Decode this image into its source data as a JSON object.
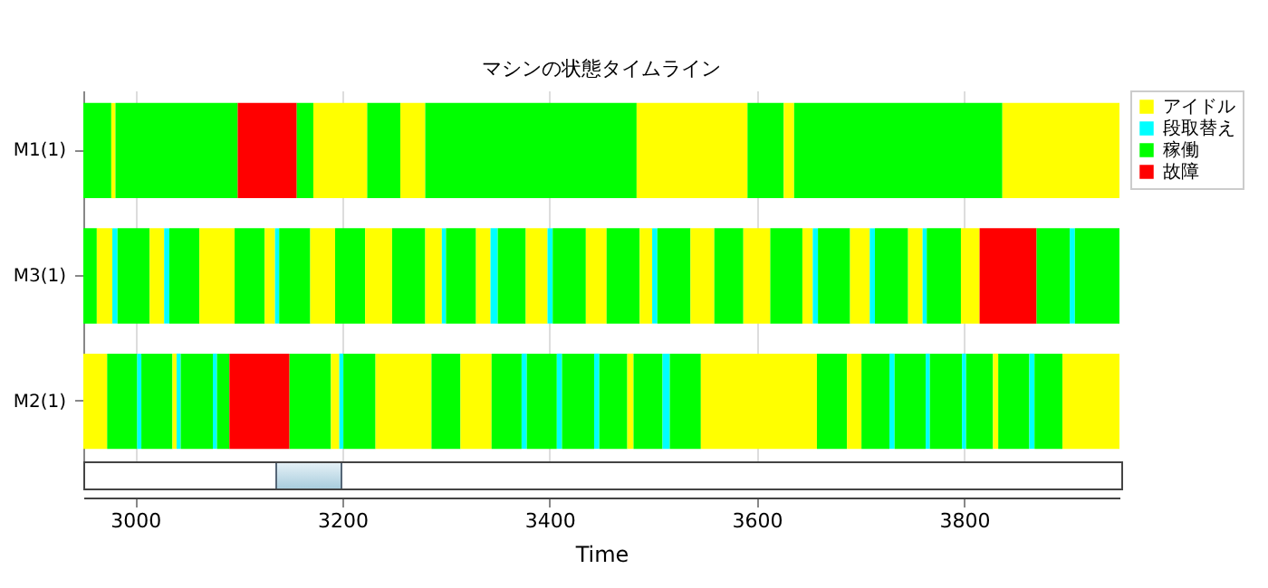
{
  "chart_data": {
    "type": "bar",
    "orientation": "horizontal",
    "title": "マシンの状態タイムライン",
    "xlabel": "Time",
    "categories": [
      "M1(1)",
      "M3(1)",
      "M2(1)"
    ],
    "xlim": [
      2950,
      3950
    ],
    "xticks": [
      3000,
      3200,
      3400,
      3600,
      3800
    ],
    "grid": "x",
    "legend": "right",
    "series": [
      {
        "color": "#00ff00",
        "base": [
          2950,
          null,
          null
        ],
        "values": [
          27,
          null,
          null
        ]
      },
      {
        "name": "アイドル",
        "color": "#ffff00",
        "base": [
          2977,
          null,
          null
        ],
        "values": [
          4,
          null,
          null
        ]
      },
      {
        "color": "#00ff00",
        "base": [
          2981,
          null,
          null
        ],
        "values": [
          118,
          null,
          null
        ]
      },
      {
        "color": "#ff0000",
        "base": [
          3099,
          null,
          null
        ],
        "values": [
          57,
          null,
          null
        ]
      },
      {
        "color": "#00ff00",
        "base": [
          3156,
          null,
          null
        ],
        "values": [
          16,
          null,
          null
        ]
      },
      {
        "color": "#ffff00",
        "base": [
          3172,
          null,
          null
        ],
        "values": [
          52,
          null,
          null
        ]
      },
      {
        "color": "#00ff00",
        "base": [
          3224,
          null,
          null
        ],
        "values": [
          32,
          null,
          null
        ]
      },
      {
        "color": "#ffff00",
        "base": [
          3256,
          null,
          null
        ],
        "values": [
          24,
          null,
          null
        ]
      },
      {
        "color": "#00ff00",
        "base": [
          3280,
          null,
          null
        ],
        "values": [
          204,
          null,
          null
        ]
      },
      {
        "color": "#ffff00",
        "base": [
          3484,
          null,
          null
        ],
        "values": [
          107,
          null,
          null
        ]
      },
      {
        "color": "#00ff00",
        "base": [
          3591,
          null,
          null
        ],
        "values": [
          35,
          null,
          null
        ]
      },
      {
        "color": "#ffff00",
        "base": [
          3626,
          null,
          null
        ],
        "values": [
          10,
          null,
          null
        ]
      },
      {
        "color": "#00ff00",
        "base": [
          3636,
          null,
          null
        ],
        "values": [
          201,
          null,
          null
        ]
      },
      {
        "color": "#ffff00",
        "base": [
          3837,
          null,
          null
        ],
        "values": [
          113,
          null,
          null
        ]
      },
      {
        "color": "#00ff00",
        "base": [
          null,
          2950,
          null
        ],
        "values": [
          null,
          13,
          null
        ]
      },
      {
        "color": "#ffff00",
        "base": [
          null,
          2963,
          null
        ],
        "values": [
          null,
          15,
          null
        ]
      },
      {
        "name": "段取替え",
        "color": "#00ffff",
        "base": [
          null,
          2978,
          null
        ],
        "values": [
          null,
          5,
          null
        ]
      },
      {
        "name": "稼働",
        "color": "#00ff00",
        "base": [
          null,
          2983,
          null
        ],
        "values": [
          null,
          31,
          null
        ]
      },
      {
        "color": "#ffff00",
        "base": [
          null,
          3014,
          null
        ],
        "values": [
          null,
          14,
          null
        ]
      },
      {
        "color": "#00ffff",
        "base": [
          null,
          3028,
          null
        ],
        "values": [
          null,
          5,
          null
        ]
      },
      {
        "color": "#00ff00",
        "base": [
          null,
          3033,
          null
        ],
        "values": [
          null,
          29,
          null
        ]
      },
      {
        "color": "#ffff00",
        "base": [
          null,
          3062,
          null
        ],
        "values": [
          null,
          34,
          null
        ]
      },
      {
        "color": "#00ff00",
        "base": [
          null,
          3096,
          null
        ],
        "values": [
          null,
          29,
          null
        ]
      },
      {
        "color": "#ffff00",
        "base": [
          null,
          3125,
          null
        ],
        "values": [
          null,
          10,
          null
        ]
      },
      {
        "color": "#00ffff",
        "base": [
          null,
          3135,
          null
        ],
        "values": [
          null,
          4,
          null
        ]
      },
      {
        "color": "#00ff00",
        "base": [
          null,
          3139,
          null
        ],
        "values": [
          null,
          30,
          null
        ]
      },
      {
        "color": "#ffff00",
        "base": [
          null,
          3169,
          null
        ],
        "values": [
          null,
          24,
          null
        ]
      },
      {
        "color": "#00ff00",
        "base": [
          null,
          3193,
          null
        ],
        "values": [
          null,
          29,
          null
        ]
      },
      {
        "color": "#ffff00",
        "base": [
          null,
          3222,
          null
        ],
        "values": [
          null,
          26,
          null
        ]
      },
      {
        "color": "#00ff00",
        "base": [
          null,
          3248,
          null
        ],
        "values": [
          null,
          32,
          null
        ]
      },
      {
        "color": "#ffff00",
        "base": [
          null,
          3280,
          null
        ],
        "values": [
          null,
          16,
          null
        ]
      },
      {
        "color": "#00ffff",
        "base": [
          null,
          3296,
          null
        ],
        "values": [
          null,
          4,
          null
        ]
      },
      {
        "color": "#00ff00",
        "base": [
          null,
          3300,
          null
        ],
        "values": [
          null,
          29,
          null
        ]
      },
      {
        "color": "#ffff00",
        "base": [
          null,
          3329,
          null
        ],
        "values": [
          null,
          14,
          null
        ]
      },
      {
        "color": "#00ffff",
        "base": [
          null,
          3343,
          null
        ],
        "values": [
          null,
          7,
          null
        ]
      },
      {
        "color": "#00ff00",
        "base": [
          null,
          3350,
          null
        ],
        "values": [
          null,
          27,
          null
        ]
      },
      {
        "color": "#ffff00",
        "base": [
          null,
          3377,
          null
        ],
        "values": [
          null,
          21,
          null
        ]
      },
      {
        "color": "#00ffff",
        "base": [
          null,
          3398,
          null
        ],
        "values": [
          null,
          5,
          null
        ]
      },
      {
        "color": "#00ff00",
        "base": [
          null,
          3403,
          null
        ],
        "values": [
          null,
          32,
          null
        ]
      },
      {
        "color": "#ffff00",
        "base": [
          null,
          3435,
          null
        ],
        "values": [
          null,
          20,
          null
        ]
      },
      {
        "color": "#00ff00",
        "base": [
          null,
          3455,
          null
        ],
        "values": [
          null,
          32,
          null
        ]
      },
      {
        "color": "#ffff00",
        "base": [
          null,
          3487,
          null
        ],
        "values": [
          null,
          12,
          null
        ]
      },
      {
        "color": "#00ffff",
        "base": [
          null,
          3499,
          null
        ],
        "values": [
          null,
          5,
          null
        ]
      },
      {
        "color": "#00ff00",
        "base": [
          null,
          3504,
          null
        ],
        "values": [
          null,
          32,
          null
        ]
      },
      {
        "color": "#ffff00",
        "base": [
          null,
          3536,
          null
        ],
        "values": [
          null,
          23,
          null
        ]
      },
      {
        "color": "#00ff00",
        "base": [
          null,
          3559,
          null
        ],
        "values": [
          null,
          28,
          null
        ]
      },
      {
        "color": "#ffff00",
        "base": [
          null,
          3587,
          null
        ],
        "values": [
          null,
          26,
          null
        ]
      },
      {
        "color": "#00ff00",
        "base": [
          null,
          3613,
          null
        ],
        "values": [
          null,
          31,
          null
        ]
      },
      {
        "color": "#ffff00",
        "base": [
          null,
          3644,
          null
        ],
        "values": [
          null,
          10,
          null
        ]
      },
      {
        "color": "#00ffff",
        "base": [
          null,
          3654,
          null
        ],
        "values": [
          null,
          5,
          null
        ]
      },
      {
        "color": "#00ff00",
        "base": [
          null,
          3659,
          null
        ],
        "values": [
          null,
          31,
          null
        ]
      },
      {
        "color": "#ffff00",
        "base": [
          null,
          3690,
          null
        ],
        "values": [
          null,
          19,
          null
        ]
      },
      {
        "color": "#00ffff",
        "base": [
          null,
          3709,
          null
        ],
        "values": [
          null,
          5,
          null
        ]
      },
      {
        "color": "#00ff00",
        "base": [
          null,
          3714,
          null
        ],
        "values": [
          null,
          32,
          null
        ]
      },
      {
        "color": "#ffff00",
        "base": [
          null,
          3746,
          null
        ],
        "values": [
          null,
          14,
          null
        ]
      },
      {
        "color": "#00ffff",
        "base": [
          null,
          3760,
          null
        ],
        "values": [
          null,
          4,
          null
        ]
      },
      {
        "color": "#00ff00",
        "base": [
          null,
          3764,
          null
        ],
        "values": [
          null,
          33,
          null
        ]
      },
      {
        "color": "#ffff00",
        "base": [
          null,
          3797,
          null
        ],
        "values": [
          null,
          18,
          null
        ]
      },
      {
        "name": "故障",
        "color": "#ff0000",
        "base": [
          null,
          3815,
          null
        ],
        "values": [
          null,
          55,
          null
        ]
      },
      {
        "color": "#00ff00",
        "base": [
          null,
          3870,
          null
        ],
        "values": [
          null,
          32,
          null
        ]
      },
      {
        "color": "#00ffff",
        "base": [
          null,
          3902,
          null
        ],
        "values": [
          null,
          5,
          null
        ]
      },
      {
        "color": "#00ff00",
        "base": [
          null,
          3907,
          null
        ],
        "values": [
          null,
          43,
          null
        ]
      },
      {
        "color": "#ffff00",
        "base": [
          null,
          null,
          2950
        ],
        "values": [
          null,
          null,
          23
        ]
      },
      {
        "color": "#00ff00",
        "base": [
          null,
          null,
          2973
        ],
        "values": [
          null,
          null,
          29
        ]
      },
      {
        "color": "#00ffff",
        "base": [
          null,
          null,
          3002
        ],
        "values": [
          null,
          null,
          4
        ]
      },
      {
        "color": "#00ff00",
        "base": [
          null,
          null,
          3006
        ],
        "values": [
          null,
          null,
          30
        ]
      },
      {
        "color": "#ffff00",
        "base": [
          null,
          null,
          3036
        ],
        "values": [
          null,
          null,
          4
        ]
      },
      {
        "color": "#00ffff",
        "base": [
          null,
          null,
          3040
        ],
        "values": [
          null,
          null,
          4
        ]
      },
      {
        "color": "#00ff00",
        "base": [
          null,
          null,
          3044
        ],
        "values": [
          null,
          null,
          31
        ]
      },
      {
        "color": "#00ffff",
        "base": [
          null,
          null,
          3075
        ],
        "values": [
          null,
          null,
          4
        ]
      },
      {
        "color": "#00ff00",
        "base": [
          null,
          null,
          3079
        ],
        "values": [
          null,
          null,
          12
        ]
      },
      {
        "color": "#ff0000",
        "base": [
          null,
          null,
          3091
        ],
        "values": [
          null,
          null,
          58
        ]
      },
      {
        "color": "#00ff00",
        "base": [
          null,
          null,
          3149
        ],
        "values": [
          null,
          null,
          40
        ]
      },
      {
        "color": "#ffff00",
        "base": [
          null,
          null,
          3189
        ],
        "values": [
          null,
          null,
          8
        ]
      },
      {
        "color": "#00ffff",
        "base": [
          null,
          null,
          3197
        ],
        "values": [
          null,
          null,
          4
        ]
      },
      {
        "color": "#00ff00",
        "base": [
          null,
          null,
          3201
        ],
        "values": [
          null,
          null,
          31
        ]
      },
      {
        "color": "#ffff00",
        "base": [
          null,
          null,
          3232
        ],
        "values": [
          null,
          null,
          54
        ]
      },
      {
        "color": "#00ff00",
        "base": [
          null,
          null,
          3286
        ],
        "values": [
          null,
          null,
          28
        ]
      },
      {
        "color": "#ffff00",
        "base": [
          null,
          null,
          3314
        ],
        "values": [
          null,
          null,
          30
        ]
      },
      {
        "color": "#00ff00",
        "base": [
          null,
          null,
          3344
        ],
        "values": [
          null,
          null,
          29
        ]
      },
      {
        "color": "#00ffff",
        "base": [
          null,
          null,
          3373
        ],
        "values": [
          null,
          null,
          5
        ]
      },
      {
        "color": "#00ff00",
        "base": [
          null,
          null,
          3378
        ],
        "values": [
          null,
          null,
          29
        ]
      },
      {
        "color": "#00ffff",
        "base": [
          null,
          null,
          3407
        ],
        "values": [
          null,
          null,
          5
        ]
      },
      {
        "color": "#00ff00",
        "base": [
          null,
          null,
          3412
        ],
        "values": [
          null,
          null,
          31
        ]
      },
      {
        "color": "#00ffff",
        "base": [
          null,
          null,
          3443
        ],
        "values": [
          null,
          null,
          5
        ]
      },
      {
        "color": "#00ff00",
        "base": [
          null,
          null,
          3448
        ],
        "values": [
          null,
          null,
          27
        ]
      },
      {
        "color": "#ffff00",
        "base": [
          null,
          null,
          3475
        ],
        "values": [
          null,
          null,
          6
        ]
      },
      {
        "color": "#00ff00",
        "base": [
          null,
          null,
          3481
        ],
        "values": [
          null,
          null,
          28
        ]
      },
      {
        "color": "#00ffff",
        "base": [
          null,
          null,
          3509
        ],
        "values": [
          null,
          null,
          7
        ]
      },
      {
        "color": "#00ff00",
        "base": [
          null,
          null,
          3516
        ],
        "values": [
          null,
          null,
          30
        ]
      },
      {
        "color": "#ffff00",
        "base": [
          null,
          null,
          3546
        ],
        "values": [
          null,
          null,
          112
        ]
      },
      {
        "color": "#00ff00",
        "base": [
          null,
          null,
          3658
        ],
        "values": [
          null,
          null,
          29
        ]
      },
      {
        "color": "#ffff00",
        "base": [
          null,
          null,
          3687
        ],
        "values": [
          null,
          null,
          14
        ]
      },
      {
        "color": "#00ff00",
        "base": [
          null,
          null,
          3701
        ],
        "values": [
          null,
          null,
          27
        ]
      },
      {
        "color": "#00ffff",
        "base": [
          null,
          null,
          3728
        ],
        "values": [
          null,
          null,
          5
        ]
      },
      {
        "color": "#00ff00",
        "base": [
          null,
          null,
          3733
        ],
        "values": [
          null,
          null,
          30
        ]
      },
      {
        "color": "#00ffff",
        "base": [
          null,
          null,
          3763
        ],
        "values": [
          null,
          null,
          4
        ]
      },
      {
        "color": "#00ff00",
        "base": [
          null,
          null,
          3767
        ],
        "values": [
          null,
          null,
          31
        ]
      },
      {
        "color": "#00ffff",
        "base": [
          null,
          null,
          3798
        ],
        "values": [
          null,
          null,
          4
        ]
      },
      {
        "color": "#00ff00",
        "base": [
          null,
          null,
          3802
        ],
        "values": [
          null,
          null,
          26
        ]
      },
      {
        "color": "#ffff00",
        "base": [
          null,
          null,
          3828
        ],
        "values": [
          null,
          null,
          5
        ]
      },
      {
        "color": "#00ff00",
        "base": [
          null,
          null,
          3833
        ],
        "values": [
          null,
          null,
          30
        ]
      },
      {
        "color": "#00ffff",
        "base": [
          null,
          null,
          3863
        ],
        "values": [
          null,
          null,
          5
        ]
      },
      {
        "color": "#00ff00",
        "base": [
          null,
          null,
          3868
        ],
        "values": [
          null,
          null,
          27
        ]
      },
      {
        "color": "#ffff00",
        "base": [
          null,
          null,
          3895
        ],
        "values": [
          null,
          null,
          55
        ]
      }
    ]
  }
}
